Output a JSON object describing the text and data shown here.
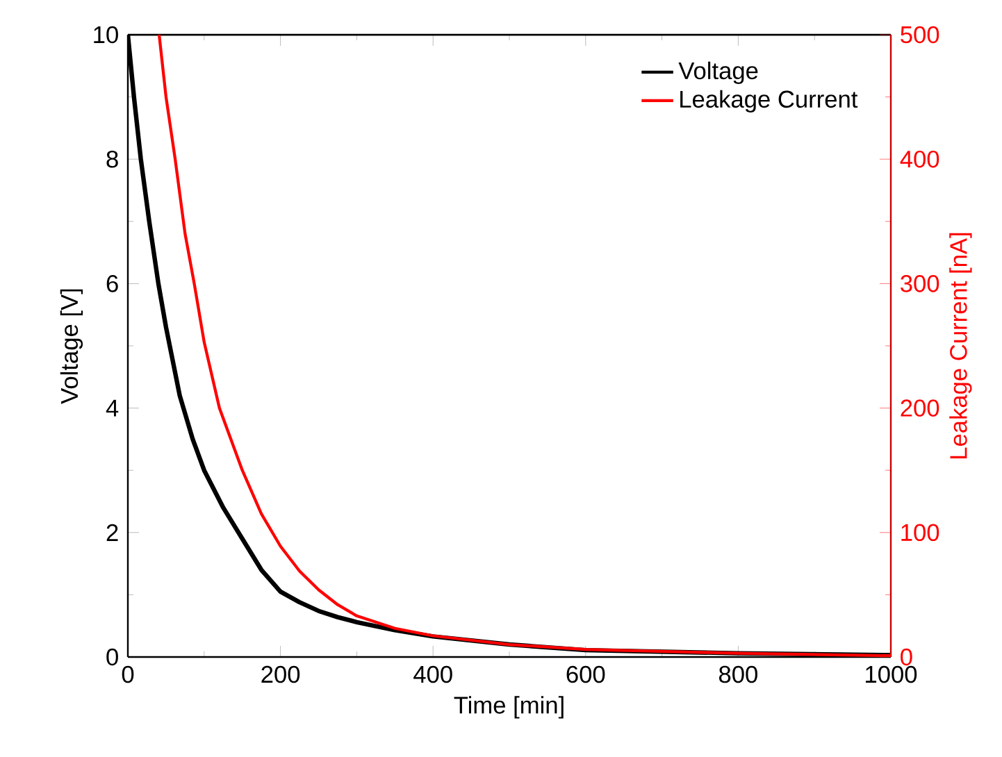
{
  "chart_data": {
    "type": "line",
    "xlabel": "Time [min]",
    "ylabel": "Voltage [V]",
    "y2label": "Leakage Current [nA]",
    "xlim": [
      0,
      1000
    ],
    "xticks": [
      0,
      200,
      400,
      600,
      800,
      1000
    ],
    "ylim": [
      0,
      10
    ],
    "yticks": [
      0,
      2,
      4,
      6,
      8,
      10
    ],
    "y2lim": [
      0,
      500
    ],
    "y2ticks": [
      0,
      100,
      200,
      300,
      400,
      500
    ],
    "legend": "top right",
    "grid": false,
    "series": [
      {
        "name": "Voltage",
        "color": "#000000",
        "x": [
          0,
          8,
          17,
          28,
          40,
          50,
          68,
          85,
          100,
          125,
          150,
          175,
          200,
          225,
          250,
          275,
          300,
          350,
          400,
          500,
          600,
          800,
          1000
        ],
        "values": [
          10,
          9,
          8,
          7,
          6,
          5.3,
          4.2,
          3.5,
          3.0,
          2.4,
          1.9,
          1.4,
          1.05,
          0.88,
          0.74,
          0.64,
          0.56,
          0.43,
          0.33,
          0.2,
          0.11,
          0.06,
          0.03
        ]
      },
      {
        "name": "Leakage Current",
        "color": "#ff0000",
        "axis": "y2",
        "x": [
          41,
          50,
          62,
          75,
          87,
          100,
          120,
          150,
          175,
          200,
          225,
          250,
          275,
          300,
          350,
          400,
          500,
          600,
          800,
          1000
        ],
        "values": [
          500,
          450,
          400,
          340,
          300,
          253,
          200,
          150,
          115,
          89,
          69,
          54,
          42,
          33,
          23,
          17,
          10,
          6,
          3,
          1
        ]
      }
    ]
  }
}
